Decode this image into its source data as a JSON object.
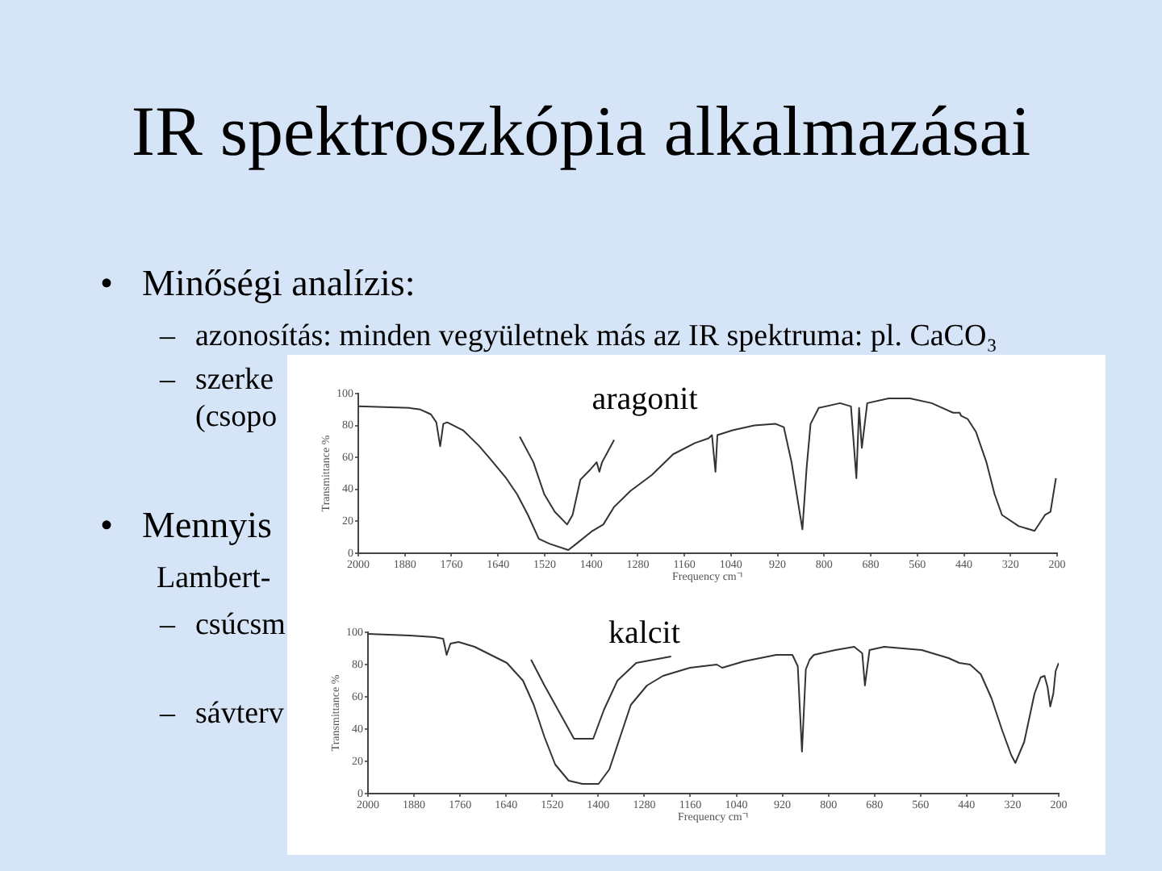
{
  "chart_data": [
    {
      "type": "line",
      "title": "aragonit",
      "xlabel": "Frequency cm⁻¹",
      "ylabel": "Transmittance %",
      "xlim": [
        2000,
        200
      ],
      "xticks": [
        2000,
        1880,
        1760,
        1640,
        1520,
        1400,
        1280,
        1160,
        1040,
        920,
        800,
        680,
        560,
        440,
        320,
        200
      ],
      "ylim": [
        0,
        100
      ],
      "yticks": [
        0,
        20,
        40,
        60,
        80,
        100
      ],
      "series": [
        {
          "color": "#333333",
          "x": [
            2000,
            1868,
            1840,
            1813,
            1799,
            1789,
            1781,
            1771,
            1730,
            1688,
            1660,
            1619,
            1591,
            1563,
            1535,
            1508,
            1459,
            1438,
            1397,
            1369,
            1341,
            1299,
            1244,
            1189,
            1133,
            1098,
            1089,
            1080,
            1075,
            1036,
            980,
            925,
            904,
            884,
            856,
            845,
            835,
            814,
            759,
            731,
            717,
            710,
            703,
            689,
            634,
            579,
            523,
            468,
            451,
            447,
            430,
            409,
            382,
            361,
            342,
            299,
            258,
            231,
            217,
            203
          ],
          "values": [
            92,
            91,
            90,
            87,
            82,
            67,
            81,
            82,
            77,
            67,
            59,
            47,
            37,
            24,
            9,
            6,
            2,
            6,
            14,
            18,
            29,
            39,
            49,
            62,
            69,
            72,
            74,
            51,
            74,
            77,
            80,
            81,
            79,
            57,
            15,
            54,
            81,
            91,
            94,
            92,
            47,
            91,
            66,
            94,
            97,
            97,
            94,
            88,
            88,
            86,
            84,
            76,
            57,
            37,
            24,
            17,
            14,
            24,
            26,
            47
          ]
        },
        {
          "color": "#333333",
          "x": [
            1584,
            1549,
            1521,
            1494,
            1462,
            1448,
            1428,
            1404,
            1386,
            1379,
            1372,
            1341
          ],
          "values": [
            73,
            57,
            37,
            26,
            18,
            24,
            46,
            52,
            57,
            51,
            57,
            71
          ]
        }
      ],
      "annotations": [
        "IR spektroszkópia alkalmazásai",
        "• Minőségi analízis:",
        "– azonosítás: minden vegyületnek más az IR spektruma: pl. CaCO₃",
        "– szerke",
        "(csopo",
        "• Mennyis",
        "Lambert-",
        "– csúcsm",
        "– sávterv"
      ]
    },
    {
      "type": "line",
      "title": "kalcit",
      "xlabel": "Frequency cm⁻¹",
      "ylabel": "Transmittance %",
      "xlim": [
        2000,
        200
      ],
      "xticks": [
        2000,
        1880,
        1760,
        1640,
        1520,
        1400,
        1280,
        1160,
        1040,
        920,
        800,
        680,
        560,
        440,
        320,
        200
      ],
      "ylim": [
        0,
        100
      ],
      "yticks": [
        0,
        20,
        40,
        60,
        80,
        100
      ],
      "series": [
        {
          "color": "#333333",
          "x": [
            2000,
            1891,
            1827,
            1804,
            1795,
            1785,
            1764,
            1722,
            1680,
            1638,
            1596,
            1568,
            1540,
            1512,
            1477,
            1441,
            1399,
            1371,
            1343,
            1315,
            1273,
            1231,
            1161,
            1091,
            1077,
            1020,
            936,
            894,
            880,
            869,
            859,
            849,
            838,
            782,
            733,
            712,
            705,
            693,
            655,
            557,
            487,
            459,
            431,
            403,
            375,
            347,
            324,
            313,
            290,
            263,
            247,
            237,
            229,
            222,
            214,
            208,
            200
          ],
          "values": [
            99,
            98,
            97,
            96,
            86,
            93,
            94,
            91,
            86,
            81,
            70,
            55,
            35,
            18,
            8,
            6,
            6,
            15,
            35,
            55,
            67,
            73,
            78,
            80,
            78,
            82,
            86,
            86,
            79,
            26,
            77,
            83,
            86,
            89,
            91,
            87,
            67,
            89,
            91,
            89,
            84,
            81,
            80,
            74,
            59,
            39,
            24,
            19,
            32,
            62,
            72,
            73,
            66,
            54,
            62,
            76,
            81
          ]
        },
        {
          "color": "#333333",
          "x": [
            1575,
            1540,
            1498,
            1463,
            1413,
            1385,
            1350,
            1301,
            1210
          ],
          "values": [
            83,
            67,
            49,
            34,
            34,
            52,
            70,
            81,
            85
          ]
        }
      ]
    }
  ]
}
